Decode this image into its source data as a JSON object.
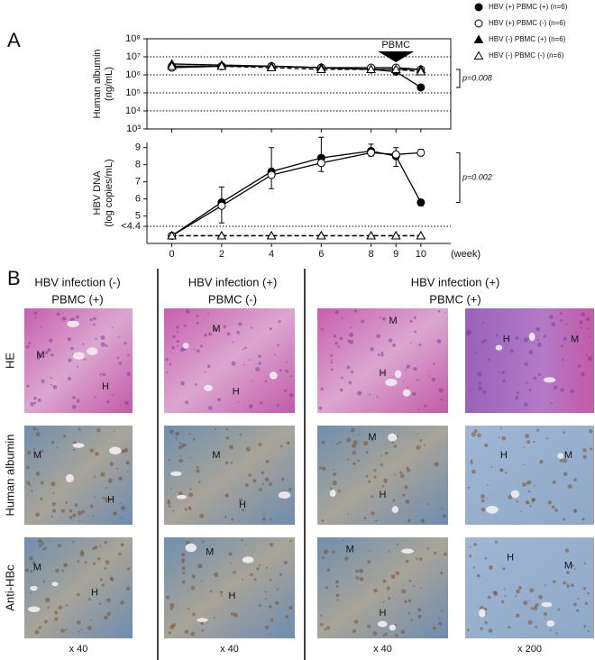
{
  "chart_data": [
    {
      "type": "line",
      "log_scale": true,
      "ylabel": [
        "Human albumin",
        "(ng/mL)"
      ],
      "x": [
        0,
        2,
        4,
        6,
        8,
        9,
        10
      ],
      "xlim": [
        -1,
        11.2
      ],
      "ylim": [
        1000,
        100000000
      ],
      "yticks": [
        {
          "value": 1000,
          "label": "10³"
        },
        {
          "value": 10000,
          "label": "10⁴"
        },
        {
          "value": 100000,
          "label": "10⁵"
        },
        {
          "value": 1000000,
          "label": "10⁶"
        },
        {
          "value": 10000000,
          "label": "10⁷"
        },
        {
          "value": 100000000,
          "label": "10⁸"
        }
      ],
      "annotations": [
        "PBMC",
        "p=0.008"
      ],
      "series": [
        {
          "name": "HBV (+) PBMC (+)  (n=6)",
          "color": "#000000",
          "marker": "circle",
          "filled": true,
          "line_style": "solid",
          "values": [
            3000000,
            3000000,
            3000000,
            2500000,
            2000000,
            1500000,
            200000
          ]
        },
        {
          "name": "HBV (+) PBMC (-)  (n=6)",
          "color": "#000000",
          "marker": "circle",
          "filled": false,
          "line_style": "solid",
          "values": [
            2500000,
            3000000,
            3000000,
            2500000,
            2500000,
            2500000,
            2000000
          ]
        },
        {
          "name": "HBV (-) PBMC (+)  (n=6)",
          "color": "#000000",
          "marker": "triangle",
          "filled": true,
          "line_style": "solid",
          "values": [
            4000000,
            3500000,
            3000000,
            2500000,
            2000000,
            2000000,
            2000000
          ]
        },
        {
          "name": "HBV (-) PBMC (-)  (n=6)",
          "color": "#000000",
          "marker": "triangle",
          "filled": false,
          "line_style": "dashed",
          "values": [
            3000000,
            3000000,
            2500000,
            2000000,
            2000000,
            2000000,
            1500000
          ]
        }
      ]
    },
    {
      "type": "line",
      "log_scale": false,
      "ylabel": [
        "HBV DNA",
        "(log copies/mL)"
      ],
      "xlabel": "(week)",
      "x": [
        0,
        2,
        4,
        6,
        8,
        9,
        10
      ],
      "xlim": [
        -1,
        11.2
      ],
      "xticks": [
        0,
        2,
        4,
        6,
        8,
        9,
        10
      ],
      "ylim": [
        3.4,
        9.3
      ],
      "yticks": [
        {
          "value": 4.4,
          "label": "<4.4"
        },
        5,
        6,
        7,
        8,
        9
      ],
      "annotations": [
        "p=0.002"
      ],
      "series": [
        {
          "color": "#000000",
          "marker": "circle",
          "filled": true,
          "line_style": "solid",
          "values": [
            3.85,
            5.8,
            7.6,
            8.4,
            8.8,
            8.5,
            5.8
          ],
          "errors": [
            0,
            1.2,
            1.0,
            0.8,
            0.3,
            0.6,
            0.2
          ]
        },
        {
          "color": "#000000",
          "marker": "circle",
          "filled": false,
          "line_style": "solid",
          "values": [
            3.85,
            5.6,
            7.4,
            8.1,
            8.7,
            8.6,
            8.7
          ],
          "errors": [
            0,
            1.1,
            1.6,
            1.5,
            0.5,
            0.4,
            0.2
          ]
        },
        {
          "color": "#000000",
          "marker": "triangle",
          "filled": true,
          "line_style": "dashed",
          "values": [
            3.85,
            3.85,
            3.85,
            3.85,
            3.85,
            3.85,
            3.85
          ]
        },
        {
          "color": "#000000",
          "marker": "triangle",
          "filled": false,
          "line_style": "dashed",
          "values": [
            3.85,
            3.85,
            3.85,
            3.85,
            3.85,
            3.85,
            3.85
          ]
        }
      ]
    }
  ],
  "panel_labels": [
    "A",
    "B"
  ],
  "panel_b": {
    "columns": [
      [
        "HBV infection (-)",
        "PBMC (+)"
      ],
      [
        "HBV infection (+)",
        "PBMC (-)"
      ],
      [
        "HBV infection (+)",
        "PBMC (+)"
      ]
    ],
    "rows": [
      "HE",
      "Human albumin",
      "Anti-HBc"
    ],
    "magnifications": [
      "x 40",
      "x 40",
      "x 40",
      "x 200"
    ],
    "images": [
      [
        [
          "M",
          "H"
        ],
        [
          "M",
          "H"
        ],
        [
          "M",
          "H"
        ],
        [
          "H",
          "M"
        ]
      ],
      [
        [
          "M",
          "H"
        ],
        [
          "M",
          "H"
        ],
        [
          "M",
          "H"
        ],
        [
          "H",
          "M"
        ]
      ],
      [
        [
          "M",
          "H"
        ],
        [
          "M",
          "H"
        ],
        [
          "M",
          "H"
        ],
        [
          "H",
          "M"
        ]
      ]
    ]
  }
}
